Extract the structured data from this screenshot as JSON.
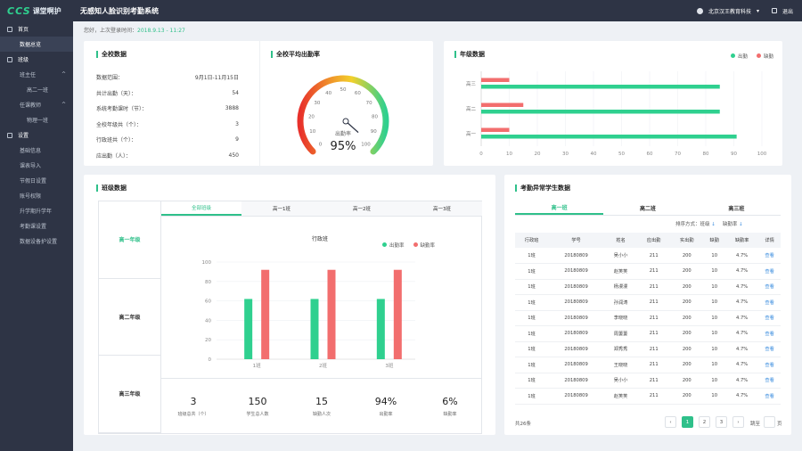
{
  "app": {
    "logo": "CCS",
    "logo_sub": "课堂啊护",
    "title": "无感知人脸识别考勤系统"
  },
  "topbar": {
    "user": "北京汉王教育科技",
    "caret": "▾",
    "exit": "退出"
  },
  "sidebar": {
    "items": [
      {
        "label": "首页",
        "level": "section"
      },
      {
        "label": "数据总览",
        "level": "sub"
      },
      {
        "label": "班级",
        "level": "section"
      },
      {
        "label": "班主任",
        "level": "sub",
        "chevron": "^"
      },
      {
        "label": "高二一班",
        "level": "sub2"
      },
      {
        "label": "任课教师",
        "level": "sub",
        "chevron": "^"
      },
      {
        "label": "物理一班",
        "level": "sub2"
      },
      {
        "label": "设置",
        "level": "section"
      },
      {
        "label": "基础信息",
        "level": "sub"
      },
      {
        "label": "课表导入",
        "level": "sub"
      },
      {
        "label": "节假日设置",
        "level": "sub"
      },
      {
        "label": "账号权限",
        "level": "sub"
      },
      {
        "label": "升学期升学年",
        "level": "sub"
      },
      {
        "label": "考勤课设置",
        "level": "sub"
      },
      {
        "label": "数据设备护设置",
        "level": "sub"
      }
    ]
  },
  "welcome": {
    "text": "您好，上次登录时间：",
    "time": "2018.9.13 - 11:27"
  },
  "school": {
    "title": "全校数据",
    "rows": [
      {
        "label": "数据范围：",
        "value": "9月1日-11月15日"
      },
      {
        "label": "共计出勤（天）：",
        "value": "54"
      },
      {
        "label": "系统考勤课时（节）：",
        "value": "3888"
      },
      {
        "label": "全校年级共（个）：",
        "value": "3"
      },
      {
        "label": "行政班共（个）：",
        "value": "9"
      },
      {
        "label": "应出勤（人）：",
        "value": "450"
      }
    ]
  },
  "gauge": {
    "title": "全校平均出勤率",
    "label": "出勤率",
    "value_text": "95%",
    "value": 95,
    "min": 0,
    "max": 100,
    "ticks": [
      "0",
      "10",
      "20",
      "30",
      "40",
      "50",
      "60",
      "70",
      "80",
      "90",
      "100"
    ]
  },
  "grade": {
    "title": "年级数据",
    "legend": [
      {
        "name": "出勤",
        "color": "#2fd08f"
      },
      {
        "name": "缺勤",
        "color": "#f26e6e"
      }
    ]
  },
  "class_section": {
    "title": "班级数据",
    "grades": [
      "高一年级",
      "高二年级",
      "高三年级"
    ],
    "active_grade": 0,
    "tabs": [
      "全部班级",
      "高一1班",
      "高一2班",
      "高一3班"
    ],
    "active_tab": 0,
    "legend": [
      {
        "name": "出勤率",
        "color": "#2fd08f"
      },
      {
        "name": "缺勤率",
        "color": "#f26e6e"
      }
    ],
    "summary": [
      {
        "value": "3",
        "label": "班级总共（个）"
      },
      {
        "value": "150",
        "label": "学生总人数"
      },
      {
        "value": "15",
        "label": "缺勤人次"
      },
      {
        "value": "94%",
        "label": "出勤率"
      },
      {
        "value": "6%",
        "label": "缺勤率"
      }
    ]
  },
  "abnormal": {
    "title": "考勤异常学生数据",
    "tabs": [
      "高一班",
      "高二班",
      "高三班"
    ],
    "active_tab": 0,
    "sort_label": "排序方式：",
    "sort_class": "班级",
    "sort_absence": "缺勤率",
    "headers": [
      "行政班",
      "学号",
      "姓名",
      "应出勤",
      "实出勤",
      "缺勤",
      "缺勤率",
      "详情"
    ],
    "rows": [
      [
        "1班",
        "20180809",
        "吴小小",
        "211",
        "200",
        "10",
        "4.7%",
        "查看"
      ],
      [
        "1班",
        "20180809",
        "赵笑笑",
        "211",
        "200",
        "10",
        "4.7%",
        "查看"
      ],
      [
        "1班",
        "20180809",
        "杨漫漫",
        "211",
        "200",
        "10",
        "4.7%",
        "查看"
      ],
      [
        "1班",
        "20180809",
        "孙润涛",
        "211",
        "200",
        "10",
        "4.7%",
        "查看"
      ],
      [
        "1班",
        "20180809",
        "李晓晓",
        "211",
        "200",
        "10",
        "4.7%",
        "查看"
      ],
      [
        "1班",
        "20180809",
        "周萋萋",
        "211",
        "200",
        "10",
        "4.7%",
        "查看"
      ],
      [
        "1班",
        "20180809",
        "郑秀秀",
        "211",
        "200",
        "10",
        "4.7%",
        "查看"
      ],
      [
        "1班",
        "20180809",
        "王晓晓",
        "211",
        "200",
        "10",
        "4.7%",
        "查看"
      ],
      [
        "1班",
        "20180809",
        "吴小小",
        "211",
        "200",
        "10",
        "4.7%",
        "查看"
      ],
      [
        "1班",
        "20180809",
        "赵笑笑",
        "211",
        "200",
        "10",
        "4.7%",
        "查看"
      ]
    ],
    "total": "共26条",
    "pages": [
      "1",
      "2",
      "3"
    ],
    "active_page": 0,
    "prev": "‹",
    "next": "›",
    "goto": "跳至",
    "page_unit": "页"
  },
  "chart_data": [
    {
      "type": "bar",
      "orientation": "horizontal",
      "categories": [
        "高一",
        "高二",
        "高三"
      ],
      "series": [
        {
          "name": "出勤",
          "values": [
            91,
            85,
            85
          ],
          "color": "#2fd08f"
        },
        {
          "name": "缺勤",
          "values": [
            10,
            15,
            10
          ],
          "color": "#f26e6e"
        }
      ],
      "xlim": [
        0,
        100
      ],
      "xticks": [
        "0",
        "10",
        "20",
        "30",
        "40",
        "50",
        "60",
        "70",
        "80",
        "90",
        "100"
      ],
      "legend": "top-right"
    },
    {
      "type": "bar",
      "title": "行政班",
      "categories": [
        "1班",
        "2班",
        "3班"
      ],
      "series": [
        {
          "name": "出勤率",
          "values": [
            62,
            62,
            62
          ],
          "color": "#2fd08f"
        },
        {
          "name": "缺勤率",
          "values": [
            92,
            92,
            92
          ],
          "color": "#f26e6e"
        }
      ],
      "ylim": [
        0,
        100
      ],
      "yticks": [
        "0",
        "20",
        "40",
        "60",
        "80",
        "100"
      ],
      "legend": "top-right"
    }
  ]
}
